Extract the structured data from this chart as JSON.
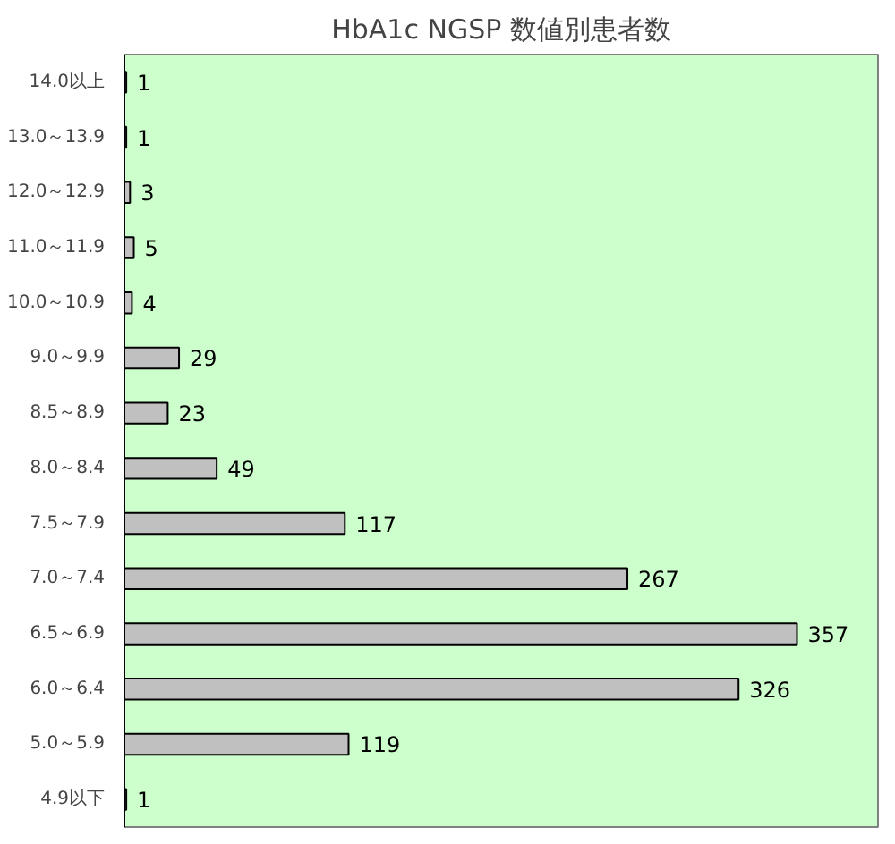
{
  "chart_data": {
    "type": "bar",
    "orientation": "horizontal",
    "title": "HbA1c NGSP 数値別患者数",
    "categories": [
      "14.0以上",
      "13.0～13.9",
      "12.0～12.9",
      "11.0～11.9",
      "10.0～10.9",
      "9.0～9.9",
      "8.5～8.9",
      "8.0～8.4",
      "7.5～7.9",
      "7.0～7.4",
      "6.5～6.9",
      "6.0～6.4",
      "5.0～5.9",
      "4.9以下"
    ],
    "values": [
      1,
      1,
      3,
      5,
      4,
      29,
      23,
      49,
      117,
      267,
      357,
      326,
      119,
      1
    ],
    "color": "#c0c0c0",
    "xlim": [
      0,
      400
    ],
    "data_labels": true,
    "tick_labels": "y",
    "grid": false
  }
}
